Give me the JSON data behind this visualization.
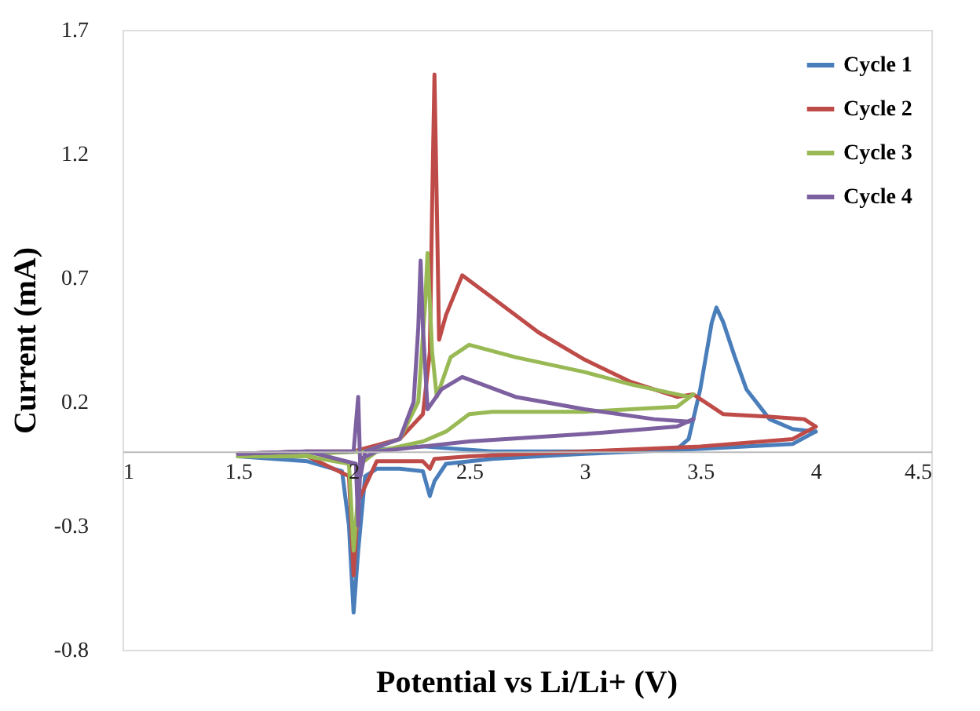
{
  "chart_data": {
    "type": "line",
    "xlabel": "Potential vs Li/Li+ (V)",
    "ylabel": "Current (mA)",
    "xlim": [
      1,
      4.5
    ],
    "xticks": [
      1,
      1.5,
      2,
      2.5,
      3,
      3.5,
      4,
      4.5
    ],
    "ylim": [
      -0.8,
      1.7
    ],
    "yticks": [
      -0.8,
      -0.3,
      0.2,
      0.7,
      1.2,
      1.7
    ],
    "grid": false,
    "legend": "top right",
    "marker": "none",
    "line_style": "solid",
    "series": [
      {
        "name": "Cycle 1",
        "color": "#4a7ebb",
        "x": [
          1.5,
          1.8,
          2.0,
          2.3,
          2.6,
          3.0,
          3.4,
          3.45,
          3.5,
          3.55,
          3.57,
          3.6,
          3.65,
          3.7,
          3.8,
          3.9,
          4.0
        ],
        "values": [
          -0.02,
          -0.01,
          0.0,
          0.02,
          0.0,
          0.0,
          0.01,
          0.05,
          0.25,
          0.52,
          0.58,
          0.52,
          0.38,
          0.25,
          0.13,
          0.09,
          0.08
        ]
      },
      {
        "color": "#4a7ebb",
        "x": [
          4.0,
          3.9,
          3.5,
          3.0,
          2.6,
          2.4,
          2.35,
          2.33,
          2.3,
          2.2,
          2.1,
          2.05,
          2.02,
          2.0,
          1.98,
          1.95,
          1.8,
          1.5
        ],
        "values": [
          0.08,
          0.03,
          0.01,
          -0.01,
          -0.03,
          -0.05,
          -0.12,
          -0.18,
          -0.08,
          -0.07,
          -0.07,
          -0.1,
          -0.4,
          -0.65,
          -0.3,
          -0.08,
          -0.04,
          -0.02
        ]
      },
      {
        "name": "Cycle 2",
        "color": "#be4b48",
        "x": [
          1.5,
          1.8,
          2.0,
          2.2,
          2.3,
          2.33,
          2.34,
          2.35,
          2.36,
          2.37,
          2.4,
          2.47,
          2.6,
          2.8,
          3.0,
          3.2,
          3.4,
          3.47,
          3.6,
          3.8,
          3.95,
          4.0
        ],
        "values": [
          -0.01,
          0.0,
          0.0,
          0.05,
          0.15,
          0.4,
          1.0,
          1.52,
          1.0,
          0.45,
          0.55,
          0.71,
          0.62,
          0.48,
          0.37,
          0.28,
          0.22,
          0.23,
          0.15,
          0.14,
          0.13,
          0.1
        ]
      },
      {
        "color": "#be4b48",
        "x": [
          4.0,
          3.9,
          3.5,
          3.0,
          2.5,
          2.35,
          2.33,
          2.3,
          2.1,
          2.02,
          2.0,
          1.98,
          1.8,
          1.5
        ],
        "values": [
          0.1,
          0.05,
          0.02,
          0.0,
          -0.02,
          -0.03,
          -0.07,
          -0.04,
          -0.04,
          -0.2,
          -0.5,
          -0.1,
          -0.02,
          -0.01
        ]
      },
      {
        "name": "Cycle 3",
        "color": "#98b954",
        "x": [
          1.5,
          1.8,
          2.05,
          2.2,
          2.28,
          2.31,
          2.32,
          2.34,
          2.36,
          2.42,
          2.5,
          2.7,
          3.0,
          3.2,
          3.45,
          3.47
        ],
        "values": [
          -0.02,
          -0.01,
          0.0,
          0.05,
          0.2,
          0.6,
          0.8,
          0.4,
          0.22,
          0.38,
          0.43,
          0.38,
          0.32,
          0.27,
          0.22,
          0.23
        ]
      },
      {
        "color": "#98b954",
        "x": [
          3.47,
          3.4,
          3.0,
          2.6,
          2.5,
          2.4,
          2.3,
          2.1,
          2.03,
          2.0,
          1.98,
          1.8,
          1.5
        ],
        "values": [
          0.23,
          0.18,
          0.16,
          0.16,
          0.15,
          0.08,
          0.04,
          0.0,
          -0.05,
          -0.4,
          -0.05,
          -0.02,
          -0.02
        ]
      },
      {
        "name": "Cycle 4",
        "color": "#7d60a0",
        "x": [
          1.5,
          1.8,
          2.0,
          2.02,
          2.03,
          2.05,
          2.2,
          2.26,
          2.28,
          2.29,
          2.3,
          2.32,
          2.38,
          2.47,
          2.7,
          3.0,
          3.3,
          3.45,
          3.47
        ],
        "values": [
          -0.01,
          0.0,
          0.0,
          0.22,
          -0.1,
          0.0,
          0.05,
          0.2,
          0.5,
          0.77,
          0.5,
          0.17,
          0.25,
          0.3,
          0.22,
          0.17,
          0.13,
          0.12,
          0.13
        ]
      },
      {
        "color": "#7d60a0",
        "x": [
          3.47,
          3.4,
          3.0,
          2.5,
          2.3,
          2.1,
          2.03,
          2.02,
          2.01,
          1.8,
          1.5
        ],
        "values": [
          0.13,
          0.1,
          0.07,
          0.04,
          0.02,
          0.0,
          -0.03,
          -0.3,
          -0.05,
          0.0,
          -0.01
        ]
      }
    ]
  }
}
